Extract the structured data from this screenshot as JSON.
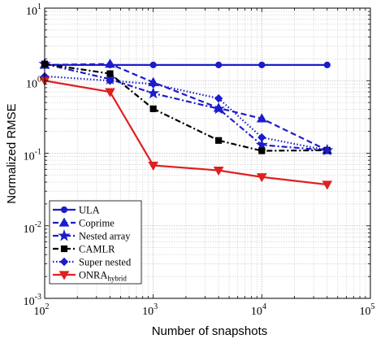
{
  "chart_data": {
    "type": "line",
    "xlabel": "Number of snapshots",
    "ylabel": "Normalized RMSE",
    "x_scale": "log",
    "y_scale": "log",
    "xlim": [
      100,
      100000
    ],
    "ylim": [
      0.001,
      10
    ],
    "grid": true,
    "legend_position": "bottom-left",
    "x_tick_labels": [
      {
        "value": 100,
        "base": "10",
        "exp": "2"
      },
      {
        "value": 1000,
        "base": "10",
        "exp": "3"
      },
      {
        "value": 10000,
        "base": "10",
        "exp": "4"
      },
      {
        "value": 100000,
        "base": "10",
        "exp": "5"
      }
    ],
    "y_tick_labels": [
      {
        "value": 0.001,
        "base": "10",
        "exp": "-3"
      },
      {
        "value": 0.01,
        "base": "10",
        "exp": "-2"
      },
      {
        "value": 0.1,
        "base": "10",
        "exp": "-1"
      },
      {
        "value": 1,
        "base": "10",
        "exp": "0"
      },
      {
        "value": 10,
        "base": "10",
        "exp": "1"
      }
    ],
    "series": [
      {
        "name": "ULA",
        "legend_main": "ULA",
        "legend_sub": "",
        "color": "#1c1ccc",
        "dash": "solid",
        "marker": "circle",
        "x": [
          100,
          400,
          1000,
          4000,
          10000,
          40000
        ],
        "y": [
          1.65,
          1.65,
          1.65,
          1.65,
          1.65,
          1.65
        ]
      },
      {
        "name": "Coprime",
        "legend_main": "Coprime",
        "legend_sub": "",
        "color": "#1c1ccc",
        "dash": "dashed",
        "marker": "triangle-up",
        "x": [
          100,
          400,
          1000,
          4000,
          10000,
          40000
        ],
        "y": [
          1.65,
          1.7,
          0.95,
          0.42,
          0.3,
          0.11
        ]
      },
      {
        "name": "Nested array",
        "legend_main": "Nested array",
        "legend_sub": "",
        "color": "#1c1ccc",
        "dash": "dashdot",
        "marker": "star",
        "x": [
          100,
          400,
          1000,
          4000,
          10000,
          40000
        ],
        "y": [
          1.7,
          1.05,
          0.67,
          0.41,
          0.13,
          0.11
        ]
      },
      {
        "name": "CAMLR",
        "legend_main": "CAMLR",
        "legend_sub": "",
        "color": "#000000",
        "dash": "dashdot",
        "marker": "square",
        "x": [
          100,
          400,
          1000,
          4000,
          10000,
          40000
        ],
        "y": [
          1.7,
          1.25,
          0.41,
          0.15,
          0.108,
          0.11
        ]
      },
      {
        "name": "Super nested",
        "legend_main": "Super nested",
        "legend_sub": "",
        "color": "#1c1ccc",
        "dash": "dotted",
        "marker": "diamond",
        "x": [
          100,
          400,
          1000,
          4000,
          10000,
          40000
        ],
        "y": [
          1.15,
          1.0,
          0.9,
          0.57,
          0.165,
          0.11
        ]
      },
      {
        "name": "ONRA_hybrid",
        "legend_main": "ONRA",
        "legend_sub": "hybrid",
        "color": "#e02020",
        "dash": "solid",
        "marker": "triangle-down",
        "x": [
          100,
          400,
          1000,
          4000,
          10000,
          40000
        ],
        "y": [
          1.0,
          0.7,
          0.068,
          0.058,
          0.047,
          0.037
        ]
      }
    ]
  }
}
